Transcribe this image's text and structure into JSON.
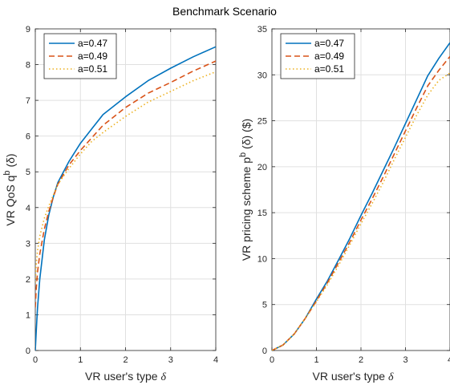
{
  "figure": {
    "title": "Benchmark Scenario"
  },
  "chart_data": [
    {
      "type": "line",
      "xlabel": "VR user's type",
      "xlabel_symbol": "δ",
      "ylabel": "VR QoS q",
      "ylabel_sup": "b",
      "ylabel_arg": "(δ)",
      "xlim": [
        0,
        4
      ],
      "ylim": [
        0,
        9
      ],
      "xticks": [
        0,
        1,
        2,
        3,
        4
      ],
      "yticks": [
        0,
        1,
        2,
        3,
        4,
        5,
        6,
        7,
        8,
        9
      ],
      "grid": true,
      "legend_position": "top-left",
      "x": [
        0,
        0.02,
        0.05,
        0.1,
        0.2,
        0.3,
        0.4,
        0.5,
        0.75,
        1,
        1.25,
        1.5,
        2,
        2.5,
        3,
        3.5,
        4
      ],
      "series": [
        {
          "name": "a=0.47",
          "color": "#0072BD",
          "dash": "solid",
          "values": [
            0.0,
            0.5,
            1.2,
            2.0,
            3.1,
            3.8,
            4.3,
            4.7,
            5.3,
            5.8,
            6.2,
            6.6,
            7.1,
            7.55,
            7.9,
            8.22,
            8.5
          ]
        },
        {
          "name": "a=0.49",
          "color": "#D95319",
          "dash": "dashed",
          "values": [
            1.2,
            1.7,
            2.2,
            2.7,
            3.4,
            3.9,
            4.3,
            4.65,
            5.2,
            5.6,
            5.95,
            6.3,
            6.8,
            7.2,
            7.5,
            7.82,
            8.1
          ]
        },
        {
          "name": "a=0.51",
          "color": "#EDB120",
          "dash": "dotted",
          "values": [
            1.9,
            2.4,
            2.8,
            3.2,
            3.7,
            4.05,
            4.35,
            4.65,
            5.1,
            5.5,
            5.85,
            6.1,
            6.55,
            6.95,
            7.25,
            7.55,
            7.8
          ]
        }
      ]
    },
    {
      "type": "line",
      "xlabel": "VR user's type",
      "xlabel_symbol": "δ",
      "ylabel": "VR pricing scheme p",
      "ylabel_sup": "b",
      "ylabel_arg": "(δ) ($)",
      "xlim": [
        0,
        4
      ],
      "ylim": [
        0,
        35
      ],
      "xticks": [
        0,
        1,
        2,
        3,
        4
      ],
      "yticks": [
        0,
        5,
        10,
        15,
        20,
        25,
        30,
        35
      ],
      "grid": true,
      "legend_position": "top-left",
      "x": [
        0,
        0.25,
        0.5,
        0.75,
        1,
        1.25,
        1.5,
        1.75,
        2,
        2.25,
        2.5,
        2.75,
        3,
        3.25,
        3.5,
        3.75,
        4
      ],
      "series": [
        {
          "name": "a=0.47",
          "color": "#0072BD",
          "dash": "solid",
          "values": [
            0,
            0.6,
            1.8,
            3.5,
            5.6,
            7.6,
            9.9,
            12.2,
            14.7,
            17.1,
            19.6,
            22.1,
            24.7,
            27.3,
            29.9,
            31.8,
            33.5
          ]
        },
        {
          "name": "a=0.49",
          "color": "#D95319",
          "dash": "dashed",
          "values": [
            0,
            0.6,
            1.8,
            3.5,
            5.4,
            7.4,
            9.6,
            11.8,
            14.2,
            16.5,
            18.9,
            21.4,
            23.9,
            26.4,
            28.8,
            30.5,
            32.0
          ]
        },
        {
          "name": "a=0.51",
          "color": "#EDB120",
          "dash": "dotted",
          "values": [
            0,
            0.6,
            1.8,
            3.5,
            5.3,
            7.2,
            9.3,
            11.5,
            13.8,
            16.0,
            18.3,
            20.8,
            23.2,
            25.6,
            27.8,
            29.4,
            30.2
          ]
        }
      ]
    }
  ]
}
